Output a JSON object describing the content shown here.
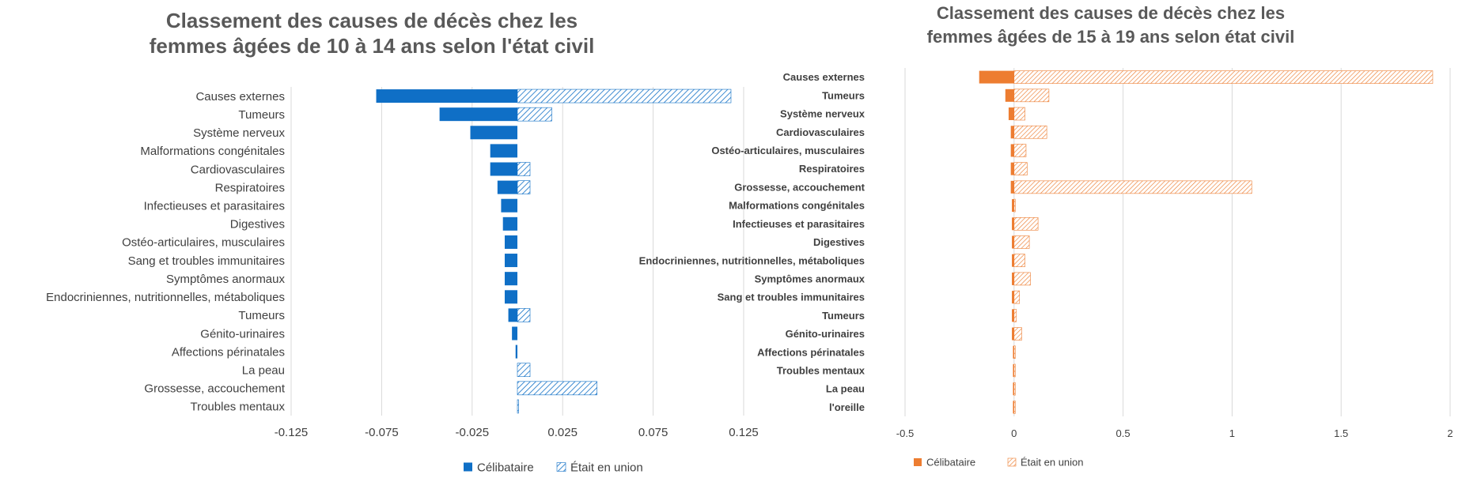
{
  "chart_data": [
    {
      "type": "bar",
      "orientation": "horizontal",
      "title_lines": [
        "Classement des causes de décès chez les",
        "femmes âgées de 10 à 14 ans selon l'état civil"
      ],
      "categories": [
        "Causes externes",
        "Tumeurs",
        "Système nerveux",
        "Malformations congénitales",
        "Cardiovasculaires",
        "Respiratoires",
        "Infectieuses et parasitaires",
        "Digestives",
        "Ostéo-articulaires, musculaires",
        "Sang et troubles immunitaires",
        "Symptômes anormaux",
        "Endocriniennes, nutritionnelles, métaboliques",
        "Tumeurs",
        "Génito-urinaires",
        "Affections périnatales",
        "La peau",
        "Grossesse, accouchement",
        "Troubles mentaux"
      ],
      "series": [
        {
          "name": "Célibataire",
          "pattern": "solid",
          "values": [
            -0.078,
            -0.043,
            -0.026,
            -0.015,
            -0.015,
            -0.011,
            -0.009,
            -0.008,
            -0.007,
            -0.007,
            -0.007,
            -0.007,
            -0.005,
            -0.003,
            -0.001,
            0,
            0,
            0
          ]
        },
        {
          "name": "Était en union",
          "pattern": "hatched",
          "values": [
            0.118,
            0.019,
            0,
            0,
            0.007,
            0.007,
            0,
            0,
            0,
            0,
            0,
            0,
            0.007,
            0,
            0,
            0.007,
            0.044,
            0.0005
          ]
        }
      ],
      "x_ticks": [
        "-0.125",
        "-0.075",
        "-0.025",
        "0.025",
        "0.075",
        "0.125"
      ],
      "xlim": [
        -0.125,
        0.125
      ],
      "grid": "vertical",
      "legend_position": "bottom",
      "color": "#0F6FC6"
    },
    {
      "type": "bar",
      "orientation": "horizontal",
      "title_lines": [
        "Classement des causes de décès chez les",
        "femmes âgées de 15 à 19 ans selon état civil"
      ],
      "categories": [
        "Causes externes",
        "Tumeurs",
        "Système nerveux",
        "Cardiovasculaires",
        "Ostéo-articulaires, musculaires",
        "Respiratoires",
        "Grossesse, accouchement",
        "Malformations congénitales",
        "Infectieuses et parasitaires",
        "Digestives",
        "Endocriniennes, nutritionnelles, métaboliques",
        "Symptômes anormaux",
        "Sang et troubles immunitaires",
        "Tumeurs",
        "Génito-urinaires",
        "Affections périnatales",
        "Troubles mentaux",
        "La peau",
        "l'oreille"
      ],
      "series": [
        {
          "name": "Célibataire",
          "pattern": "solid",
          "values": [
            -0.16,
            -0.04,
            -0.025,
            -0.015,
            -0.015,
            -0.015,
            -0.015,
            -0.01,
            -0.01,
            -0.01,
            -0.01,
            -0.01,
            -0.01,
            -0.01,
            -0.01,
            -0.005,
            -0.005,
            -0.005,
            -0.005
          ]
        },
        {
          "name": "Était en union",
          "pattern": "hatched",
          "values": [
            1.92,
            0.16,
            0.05,
            0.15,
            0.055,
            0.06,
            1.09,
            0.005,
            0.11,
            0.07,
            0.05,
            0.075,
            0.025,
            0.01,
            0.035,
            0.005,
            0.005,
            0.005,
            0.005
          ]
        }
      ],
      "x_ticks": [
        "-0.5",
        "0",
        "0.5",
        "1",
        "1.5",
        "2"
      ],
      "xlim": [
        -0.5,
        2
      ],
      "grid": "vertical",
      "legend_position": "bottom",
      "color": "#ED7D31"
    }
  ]
}
